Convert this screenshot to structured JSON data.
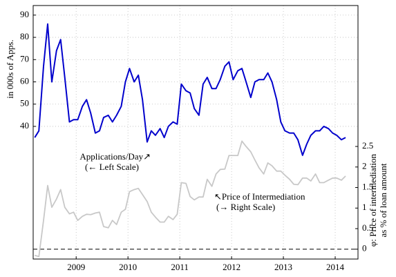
{
  "chart_data": {
    "type": "line",
    "y_label": "in 000s of Apps.",
    "y2_label": [
      "φ: Price of intermediation",
      "as % of loan amount"
    ],
    "x": [
      2008.2,
      2008.28,
      2008.37,
      2008.45,
      2008.53,
      2008.62,
      2008.7,
      2008.78,
      2008.87,
      2008.95,
      2009.03,
      2009.12,
      2009.2,
      2009.28,
      2009.37,
      2009.45,
      2009.53,
      2009.62,
      2009.7,
      2009.78,
      2009.87,
      2009.95,
      2010.03,
      2010.12,
      2010.2,
      2010.28,
      2010.37,
      2010.45,
      2010.53,
      2010.62,
      2010.7,
      2010.78,
      2010.87,
      2010.95,
      2011.03,
      2011.12,
      2011.2,
      2011.28,
      2011.37,
      2011.45,
      2011.53,
      2011.62,
      2011.7,
      2011.78,
      2011.87,
      2011.95,
      2012.03,
      2012.12,
      2012.2,
      2012.28,
      2012.37,
      2012.45,
      2012.53,
      2012.62,
      2012.7,
      2012.78,
      2012.87,
      2012.95,
      2013.03,
      2013.12,
      2013.2,
      2013.28,
      2013.37,
      2013.45,
      2013.53,
      2013.62,
      2013.7,
      2013.78,
      2013.87,
      2013.95,
      2014.03,
      2014.12,
      2014.2
    ],
    "series": [
      {
        "name": "Applications/Day",
        "color": "#0000cc",
        "axis": "y",
        "values": [
          35,
          38,
          67,
          86,
          60,
          74,
          79,
          62,
          42,
          43,
          43,
          49,
          52,
          46,
          37,
          38,
          44,
          45,
          42,
          45,
          49,
          60,
          66,
          60,
          63,
          52,
          33,
          38,
          36,
          39,
          35,
          40,
          42,
          41,
          59,
          56,
          55,
          48,
          45,
          59,
          62,
          57,
          57,
          61,
          67,
          69,
          61,
          65,
          66,
          60,
          53,
          60,
          61,
          61,
          64,
          60,
          52,
          42,
          38,
          37,
          37,
          34,
          27,
          32,
          36,
          38,
          38,
          40,
          39,
          37,
          36,
          34,
          35
        ]
      },
      {
        "name": "Price of Intermediation",
        "color": "#c8c8c8",
        "axis": "y2",
        "values": [
          -0.15,
          -0.18,
          0.7,
          1.55,
          1.02,
          1.22,
          1.45,
          1.02,
          0.86,
          0.9,
          0.7,
          0.8,
          0.85,
          0.84,
          0.88,
          0.9,
          0.55,
          0.52,
          0.7,
          0.6,
          0.9,
          0.97,
          1.4,
          1.45,
          1.48,
          1.33,
          1.16,
          0.9,
          0.78,
          0.66,
          0.66,
          0.8,
          0.72,
          0.85,
          1.62,
          1.6,
          1.28,
          1.2,
          1.27,
          1.27,
          1.7,
          1.53,
          1.83,
          1.94,
          1.95,
          2.28,
          2.28,
          2.28,
          2.63,
          2.5,
          2.37,
          2.17,
          1.98,
          1.83,
          2.1,
          2.03,
          1.9,
          1.9,
          1.8,
          1.7,
          1.58,
          1.57,
          1.73,
          1.73,
          1.66,
          1.83,
          1.62,
          1.62,
          1.68,
          1.73,
          1.73,
          1.68,
          1.78
        ]
      }
    ],
    "annotations": [
      {
        "lines": [
          "Applications/Day↗",
          "(← Left Scale)"
        ],
        "series": 0
      },
      {
        "lines": [
          "↖Price of Intermediation",
          "(→ Right Scale)"
        ],
        "series": 1
      }
    ],
    "reference_line": {
      "value": 0,
      "axis": "y2",
      "style": "dashed"
    },
    "xlim": [
      2008.17,
      2014.44
    ],
    "xticks": [
      2009,
      2010,
      2011,
      2012,
      2013,
      2014
    ],
    "ylim": [
      -19.6,
      94.3
    ],
    "yticks": [
      40,
      50,
      60,
      70,
      80,
      90
    ],
    "y2lim": [
      -0.24,
      5.93
    ],
    "y2ticks": [
      0,
      0.5,
      1,
      1.5,
      2,
      2.5
    ],
    "grid": true
  }
}
